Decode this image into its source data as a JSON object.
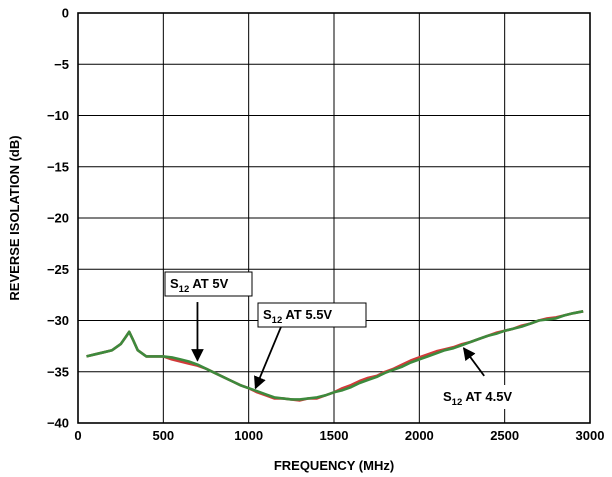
{
  "chart_data": {
    "type": "line",
    "xlabel": "FREQUENCY (MHz)",
    "ylabel": "REVERSE ISOLATION (dB)",
    "xlim": [
      0,
      3000
    ],
    "ylim": [
      -40,
      0
    ],
    "xticks": [
      0,
      500,
      1000,
      1500,
      2000,
      2500,
      3000
    ],
    "yticks": [
      0,
      -5,
      -10,
      -15,
      -20,
      -25,
      -30,
      -35,
      -40
    ],
    "ytick_labels": [
      "0",
      "−5",
      "−10",
      "−15",
      "−20",
      "−25",
      "−30",
      "−35",
      "−40"
    ],
    "grid": true,
    "colors": {
      "red": "#d23a3a",
      "green": "#3d8a3d",
      "dark": "#2f5f3a"
    },
    "series": [
      {
        "color_key": "red",
        "x": [
          50,
          100,
          150,
          200,
          250,
          280,
          300,
          320,
          350,
          400,
          450,
          500,
          550,
          600,
          650,
          700,
          750,
          800,
          850,
          900,
          950,
          1000,
          1050,
          1100,
          1150,
          1200,
          1250,
          1300,
          1350,
          1400,
          1450,
          1500,
          1550,
          1600,
          1650,
          1700,
          1750,
          1800,
          1850,
          1900,
          1950,
          2000,
          2050,
          2100,
          2150,
          2200,
          2250,
          2300,
          2350,
          2400,
          2450,
          2500,
          2550,
          2600,
          2650,
          2700,
          2750,
          2800,
          2850,
          2900,
          2960
        ],
        "y": [
          -33.5,
          -33.3,
          -33.1,
          -32.9,
          -32.3,
          -31.6,
          -31.1,
          -31.8,
          -32.9,
          -33.5,
          -33.5,
          -33.5,
          -33.8,
          -34.0,
          -34.2,
          -34.4,
          -34.7,
          -35.1,
          -35.5,
          -35.9,
          -36.3,
          -36.6,
          -37.0,
          -37.3,
          -37.6,
          -37.6,
          -37.7,
          -37.8,
          -37.6,
          -37.6,
          -37.3,
          -37.0,
          -36.6,
          -36.3,
          -35.9,
          -35.6,
          -35.4,
          -35.0,
          -34.7,
          -34.3,
          -33.9,
          -33.6,
          -33.3,
          -33.0,
          -32.8,
          -32.6,
          -32.3,
          -32.1,
          -31.8,
          -31.5,
          -31.2,
          -31.0,
          -30.8,
          -30.5,
          -30.3,
          -30.0,
          -29.8,
          -29.7,
          -29.5,
          -29.3,
          -29.1
        ]
      },
      {
        "color_key": "green",
        "x": [
          50,
          100,
          150,
          200,
          250,
          280,
          300,
          320,
          350,
          400,
          450,
          500,
          550,
          600,
          650,
          700,
          750,
          800,
          850,
          900,
          950,
          1000,
          1050,
          1100,
          1150,
          1200,
          1250,
          1300,
          1350,
          1400,
          1450,
          1500,
          1550,
          1600,
          1650,
          1700,
          1750,
          1800,
          1850,
          1900,
          1950,
          2000,
          2050,
          2100,
          2150,
          2200,
          2250,
          2300,
          2350,
          2400,
          2450,
          2500,
          2550,
          2600,
          2650,
          2700,
          2750,
          2800,
          2850,
          2900,
          2960
        ],
        "y": [
          -33.5,
          -33.3,
          -33.1,
          -32.9,
          -32.3,
          -31.6,
          -31.1,
          -31.8,
          -32.9,
          -33.5,
          -33.5,
          -33.5,
          -33.6,
          -33.8,
          -34.0,
          -34.3,
          -34.7,
          -35.1,
          -35.5,
          -35.9,
          -36.3,
          -36.6,
          -36.9,
          -37.2,
          -37.5,
          -37.6,
          -37.7,
          -37.7,
          -37.6,
          -37.5,
          -37.3,
          -37.0,
          -36.8,
          -36.5,
          -36.1,
          -35.8,
          -35.5,
          -35.1,
          -34.8,
          -34.5,
          -34.1,
          -33.8,
          -33.5,
          -33.2,
          -32.9,
          -32.7,
          -32.4,
          -32.1,
          -31.8,
          -31.5,
          -31.3,
          -31.0,
          -30.8,
          -30.6,
          -30.3,
          -30.0,
          -29.9,
          -29.8,
          -29.5,
          -29.3,
          -29.1
        ]
      }
    ],
    "annotations": [
      {
        "main": "S",
        "sub": "12",
        "rest": " AT 5V",
        "box": true,
        "arrow_from": [
          700,
          -28.2
        ],
        "arrow_to": [
          700,
          -33.9
        ]
      },
      {
        "main": "S",
        "sub": "12",
        "rest": " AT 5.5V",
        "box": true,
        "arrow_from": [
          1200,
          -30.2
        ],
        "arrow_to": [
          1040,
          -36.6
        ]
      },
      {
        "main": "S",
        "sub": "12",
        "rest": " AT 4.5V",
        "box": false,
        "arrow_from": [
          2380,
          -35.4
        ],
        "arrow_to": [
          2260,
          -32.7
        ]
      }
    ]
  }
}
